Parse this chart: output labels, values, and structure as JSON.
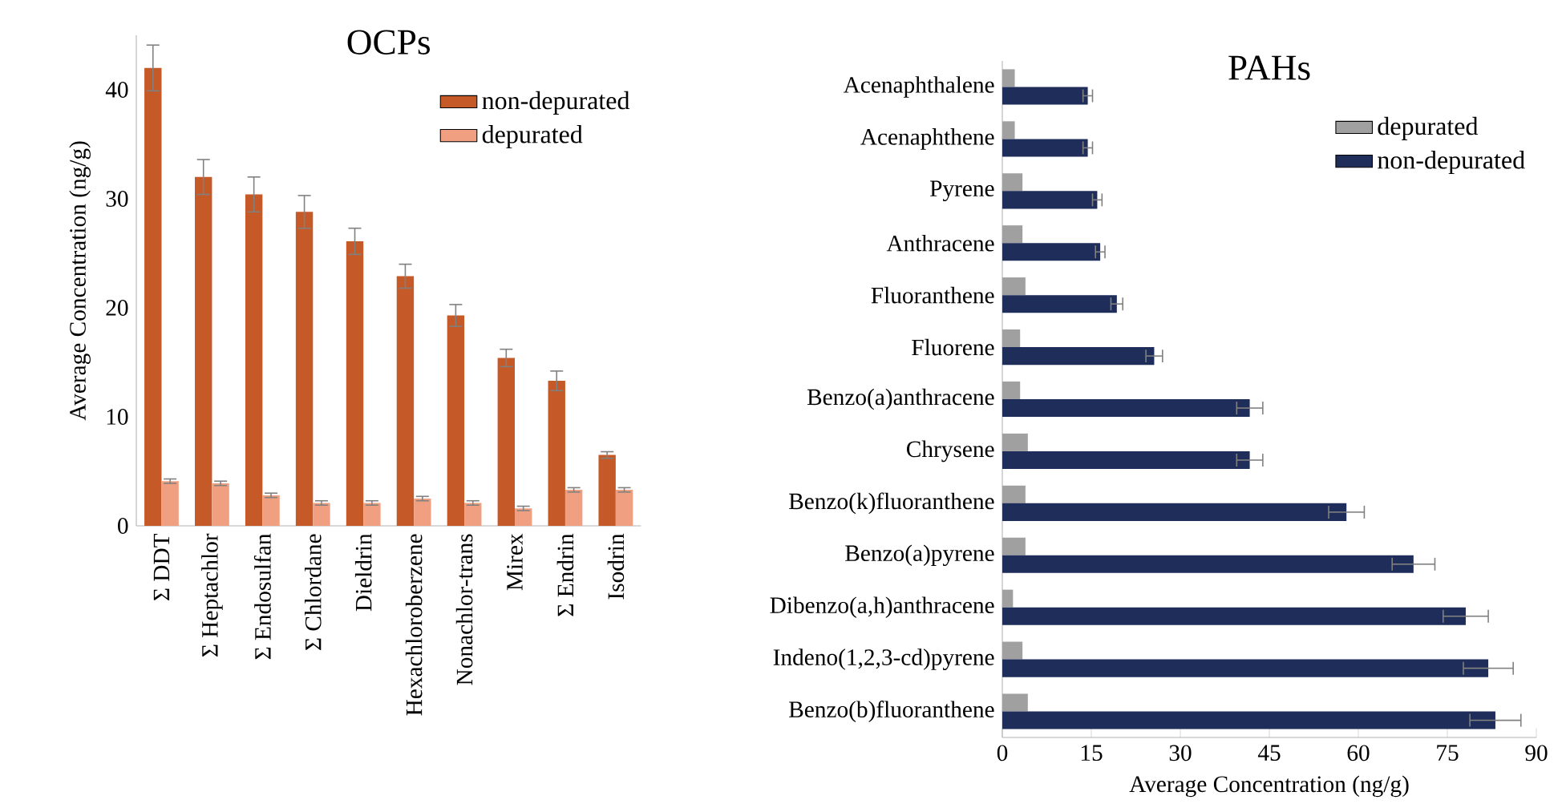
{
  "chart_data": [
    {
      "type": "bar",
      "title": "OCPs",
      "ylabel": "Average Concentration (ng/g)",
      "categories": [
        "Σ DDT",
        "Σ Heptachlor",
        "Σ Endosulfan",
        "Σ Chlordane",
        "Dieldrin",
        "Hexachloroberzene",
        "Nonachlor-trans",
        "Mirex",
        "Σ Endrin",
        "Isodrin"
      ],
      "series": [
        {
          "name": "non-depurated",
          "color": "#c55a28",
          "values": [
            42.0,
            32.0,
            30.4,
            28.8,
            26.1,
            22.9,
            19.3,
            15.4,
            13.3,
            6.5
          ],
          "errors": [
            2.1,
            1.6,
            1.6,
            1.5,
            1.2,
            1.1,
            1.0,
            0.8,
            0.9,
            0.3
          ]
        },
        {
          "name": "depurated",
          "color": "#f0a080",
          "values": [
            4.1,
            3.9,
            2.8,
            2.1,
            2.1,
            2.5,
            2.1,
            1.6,
            3.3,
            3.3
          ],
          "errors": [
            0.2,
            0.2,
            0.2,
            0.2,
            0.2,
            0.2,
            0.2,
            0.2,
            0.2,
            0.2
          ]
        }
      ],
      "ylim": [
        0,
        45
      ],
      "yticks": [
        0,
        10,
        20,
        30,
        40
      ],
      "legend": "top right"
    },
    {
      "type": "bar",
      "orientation": "horizontal",
      "title": "PAHs",
      "xlabel": "Average Concentration (ng/g)",
      "categories": [
        "Acenaphthalene",
        "Acenaphthene",
        "Pyrene",
        "Anthracene",
        "Fluoranthene",
        "Fluorene",
        "Benzo(a)anthracene",
        "Chrysene",
        "Benzo(k)fluoranthene",
        "Benzo(a)pyrene",
        "Dibenzo(a,h)anthracene",
        "Indeno(1,2,3-cd)pyrene",
        "Benzo(b)fluoranthene"
      ],
      "series": [
        {
          "name": "depurated",
          "color": "#a0a0a0",
          "values": [
            2.1,
            2.1,
            3.4,
            3.4,
            3.9,
            3.0,
            3.0,
            4.3,
            3.9,
            3.9,
            1.8,
            3.4,
            4.3
          ]
        },
        {
          "name": "non-depurated",
          "color": "#1f2d5a",
          "values": [
            14.4,
            14.4,
            16.0,
            16.5,
            19.3,
            25.6,
            41.7,
            41.7,
            58.0,
            69.3,
            78.1,
            81.9,
            83.1
          ],
          "errors": [
            0.8,
            0.8,
            0.8,
            0.8,
            1.0,
            1.4,
            2.2,
            2.2,
            3.0,
            3.6,
            3.8,
            4.2,
            4.3
          ]
        }
      ],
      "xlim": [
        0,
        90
      ],
      "xticks": [
        0,
        15,
        30,
        45,
        60,
        75,
        90
      ],
      "legend": "top right"
    }
  ]
}
